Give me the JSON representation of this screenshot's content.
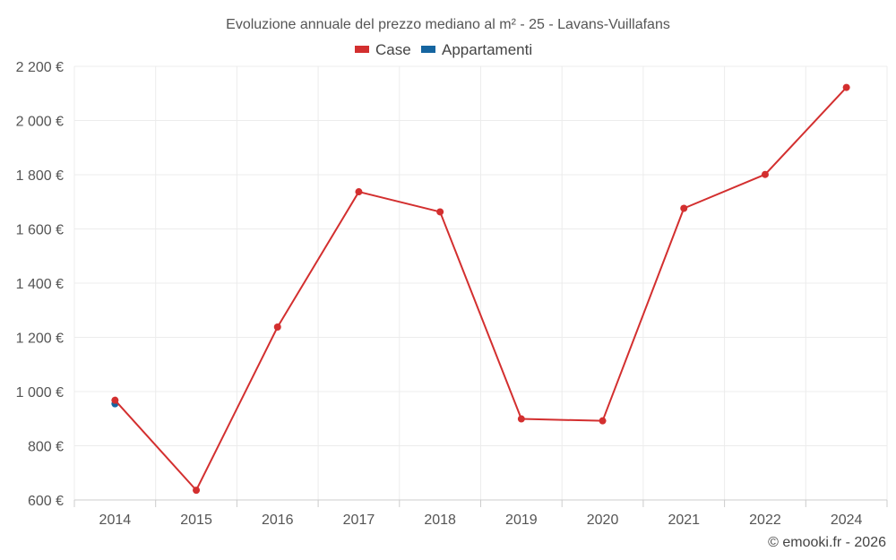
{
  "chart_data": {
    "type": "line",
    "title": "Evoluzione annuale del prezzo mediano al m² - 25 - Lavans-Vuillafans",
    "categories": [
      "2014",
      "2015",
      "2016",
      "2017",
      "2018",
      "2019",
      "2020",
      "2021",
      "2022",
      "2024"
    ],
    "ylim": [
      600,
      2200
    ],
    "yticks": [
      600,
      800,
      1000,
      1200,
      1400,
      1600,
      1800,
      2000,
      2200
    ],
    "ytick_labels": [
      "600 €",
      "800 €",
      "1 000 €",
      "1 200 €",
      "1 400 €",
      "1 600 €",
      "1 800 €",
      "2 000 €",
      "2 200 €"
    ],
    "grid": true,
    "legend_position": "top-center",
    "series": [
      {
        "name": "Case",
        "color": "#d32f2f",
        "values": [
          968,
          636,
          1238,
          1737,
          1663,
          899,
          892,
          1676,
          1801,
          2122
        ]
      },
      {
        "name": "Appartamenti",
        "color": "#1565a0",
        "values": [
          955,
          null,
          null,
          null,
          null,
          null,
          null,
          null,
          null,
          null
        ]
      }
    ]
  },
  "credit": "© emooki.fr - 2026"
}
